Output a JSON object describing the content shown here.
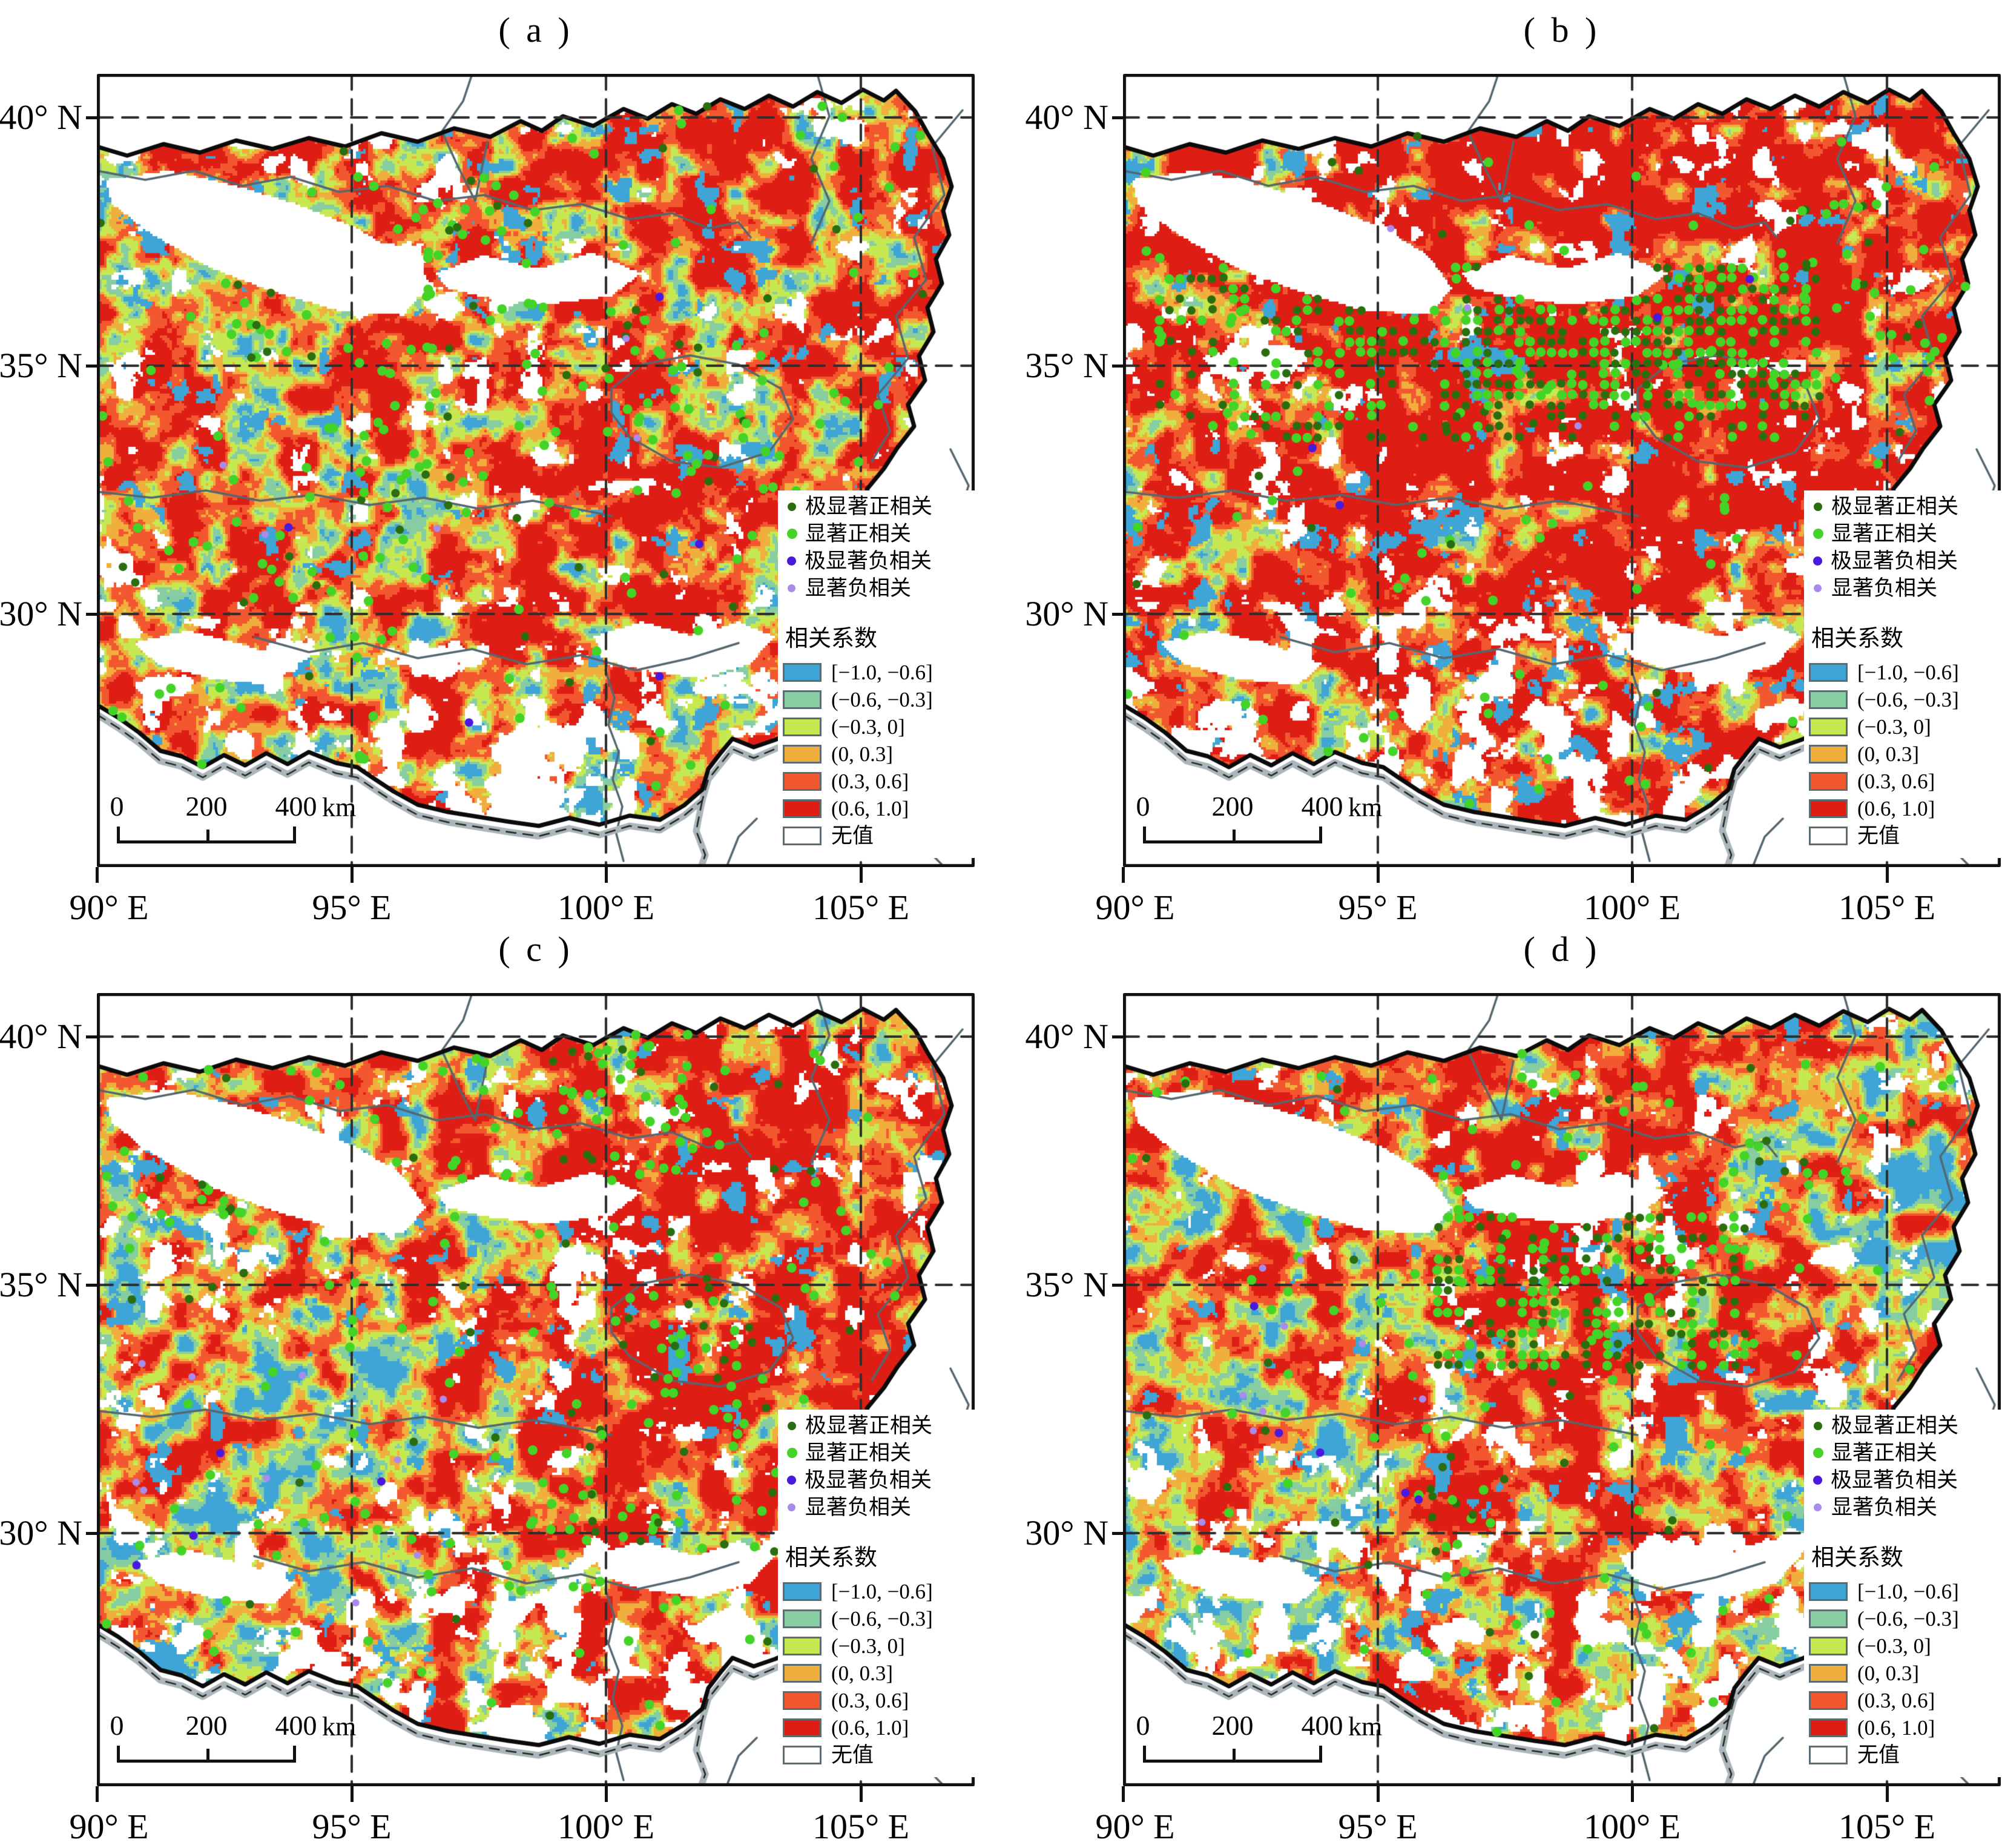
{
  "figure": {
    "panels": [
      {
        "id": "a",
        "label": "( a )"
      },
      {
        "id": "b",
        "label": "( b )"
      },
      {
        "id": "c",
        "label": "( c )"
      },
      {
        "id": "d",
        "label": "( d )"
      }
    ]
  },
  "axis": {
    "lat_ticks": [
      "40° N",
      "35° N",
      "30° N"
    ],
    "lon_ticks": [
      "90° E",
      "95° E",
      "100° E",
      "105° E"
    ]
  },
  "legend": {
    "significance": [
      {
        "label": "极显著正相关",
        "color": "#2a6e10"
      },
      {
        "label": "显著正相关",
        "color": "#43d427"
      },
      {
        "label": "极显著负相关",
        "color": "#4b18e0"
      },
      {
        "label": "显著负相关",
        "color": "#a98bee"
      }
    ],
    "coef_title": "相关系数",
    "classes": [
      {
        "label": "[−1.0, −0.6]",
        "color": "#3fa5d6"
      },
      {
        "label": "(−0.6, −0.3]",
        "color": "#86cda2"
      },
      {
        "label": "(−0.3, 0]",
        "color": "#c6e952"
      },
      {
        "label": "(0, 0.3]",
        "color": "#f0af3c"
      },
      {
        "label": "(0.3, 0.6]",
        "color": "#f2572f"
      },
      {
        "label": "(0.6, 1.0]",
        "color": "#de1e15"
      }
    ],
    "no_value": {
      "label": "无值",
      "color": "#ffffff"
    }
  },
  "scalebar": {
    "ticks": [
      "0",
      "200",
      "400"
    ],
    "unit": "km"
  },
  "map": {
    "palette": {
      "blue": "#3fa5d6",
      "green": "#86cda2",
      "ygreen": "#c6e952",
      "amber": "#f0af3c",
      "ored": "#f2572f",
      "red": "#de1e15",
      "white": "#ffffff"
    },
    "dot_colors": {
      "pos_strong": "#2a6e10",
      "pos": "#43d427",
      "neg_strong": "#4b18e0",
      "neg": "#a98bee"
    },
    "line_colors": {
      "boundary": "#0b0b0b",
      "thin": "#55676f",
      "plateau": "#abb6ba",
      "grid": "#2e2e2e"
    }
  }
}
